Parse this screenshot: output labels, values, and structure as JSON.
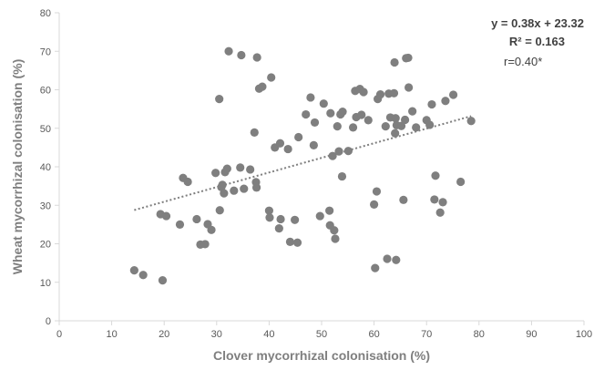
{
  "chart_data": {
    "type": "scatter",
    "title": "",
    "xlabel": "Clover mycorrhizal colonisation (%)",
    "ylabel": "Wheat mycorrhizal colonisation (%)",
    "xlim": [
      0,
      100
    ],
    "ylim": [
      0,
      80
    ],
    "x_ticks": [
      "0",
      "10",
      "20",
      "30",
      "40",
      "50",
      "60",
      "70",
      "80",
      "90",
      "100"
    ],
    "y_ticks": [
      "0",
      "10",
      "20",
      "30",
      "40",
      "50",
      "60",
      "70",
      "80"
    ],
    "grid": false,
    "legend": "none",
    "colors": {
      "points": "#7f7f7f",
      "trendline": "#7f7f7f",
      "axis": "#d9d9d9"
    },
    "trendline": {
      "slope": 0.38,
      "intercept": 23.32,
      "x_range": [
        14.3,
        78.5
      ]
    },
    "annotations": {
      "equation": "y = 0.38x + 23.32",
      "r_squared": "R² = 0.163",
      "r": "r=0.40*"
    },
    "points": [
      [
        14.3,
        13.1
      ],
      [
        16.0,
        11.9
      ],
      [
        19.3,
        27.7
      ],
      [
        19.7,
        10.5
      ],
      [
        20.4,
        27.2
      ],
      [
        23.0,
        25.0
      ],
      [
        23.6,
        37.1
      ],
      [
        24.5,
        36.1
      ],
      [
        26.2,
        26.4
      ],
      [
        26.9,
        19.8
      ],
      [
        27.8,
        19.9
      ],
      [
        28.3,
        25.1
      ],
      [
        29.0,
        23.6
      ],
      [
        29.8,
        38.4
      ],
      [
        30.5,
        57.6
      ],
      [
        30.6,
        28.7
      ],
      [
        30.9,
        34.7
      ],
      [
        31.1,
        35.3
      ],
      [
        31.4,
        33.1
      ],
      [
        31.6,
        38.6
      ],
      [
        32.0,
        39.5
      ],
      [
        32.3,
        70.0
      ],
      [
        33.3,
        33.8
      ],
      [
        34.5,
        39.8
      ],
      [
        34.7,
        69.0
      ],
      [
        35.2,
        34.3
      ],
      [
        36.4,
        39.3
      ],
      [
        37.2,
        48.9
      ],
      [
        37.5,
        36.0
      ],
      [
        37.6,
        34.6
      ],
      [
        37.7,
        68.4
      ],
      [
        38.1,
        60.3
      ],
      [
        38.7,
        60.8
      ],
      [
        40.0,
        28.6
      ],
      [
        40.1,
        26.8
      ],
      [
        40.4,
        63.2
      ],
      [
        41.1,
        45.0
      ],
      [
        41.9,
        24.0
      ],
      [
        42.1,
        46.1
      ],
      [
        42.2,
        26.4
      ],
      [
        43.6,
        44.6
      ],
      [
        44.0,
        20.5
      ],
      [
        44.9,
        26.2
      ],
      [
        45.4,
        20.3
      ],
      [
        45.6,
        47.7
      ],
      [
        47.0,
        53.6
      ],
      [
        47.9,
        58.0
      ],
      [
        48.5,
        45.6
      ],
      [
        48.7,
        51.5
      ],
      [
        49.7,
        27.2
      ],
      [
        50.4,
        56.4
      ],
      [
        51.5,
        28.6
      ],
      [
        51.6,
        24.8
      ],
      [
        51.7,
        53.9
      ],
      [
        52.1,
        42.8
      ],
      [
        52.4,
        23.5
      ],
      [
        52.6,
        21.3
      ],
      [
        53.0,
        50.5
      ],
      [
        53.3,
        44.0
      ],
      [
        53.6,
        53.6
      ],
      [
        53.9,
        37.5
      ],
      [
        54.0,
        54.3
      ],
      [
        55.1,
        44.1
      ],
      [
        56.0,
        50.2
      ],
      [
        56.4,
        59.7
      ],
      [
        56.6,
        52.9
      ],
      [
        57.3,
        60.2
      ],
      [
        57.6,
        53.5
      ],
      [
        58.0,
        59.4
      ],
      [
        58.9,
        52.1
      ],
      [
        60.0,
        30.2
      ],
      [
        60.2,
        13.7
      ],
      [
        60.5,
        33.6
      ],
      [
        60.7,
        57.6
      ],
      [
        61.2,
        58.8
      ],
      [
        62.2,
        50.5
      ],
      [
        62.5,
        16.1
      ],
      [
        62.8,
        59.0
      ],
      [
        63.1,
        52.8
      ],
      [
        63.8,
        59.1
      ],
      [
        63.9,
        67.1
      ],
      [
        64.0,
        48.7
      ],
      [
        64.1,
        52.6
      ],
      [
        64.2,
        15.8
      ],
      [
        64.3,
        50.8
      ],
      [
        65.2,
        50.6
      ],
      [
        65.6,
        31.4
      ],
      [
        65.9,
        52.2
      ],
      [
        66.1,
        68.2
      ],
      [
        66.5,
        68.3
      ],
      [
        66.6,
        60.6
      ],
      [
        67.3,
        54.4
      ],
      [
        68.0,
        50.2
      ],
      [
        70.0,
        52.1
      ],
      [
        70.6,
        50.9
      ],
      [
        71.0,
        56.2
      ],
      [
        71.5,
        31.5
      ],
      [
        71.7,
        37.7
      ],
      [
        72.6,
        28.1
      ],
      [
        73.1,
        30.8
      ],
      [
        73.6,
        57.1
      ],
      [
        75.1,
        58.7
      ],
      [
        76.5,
        36.1
      ],
      [
        78.5,
        51.9
      ]
    ]
  }
}
